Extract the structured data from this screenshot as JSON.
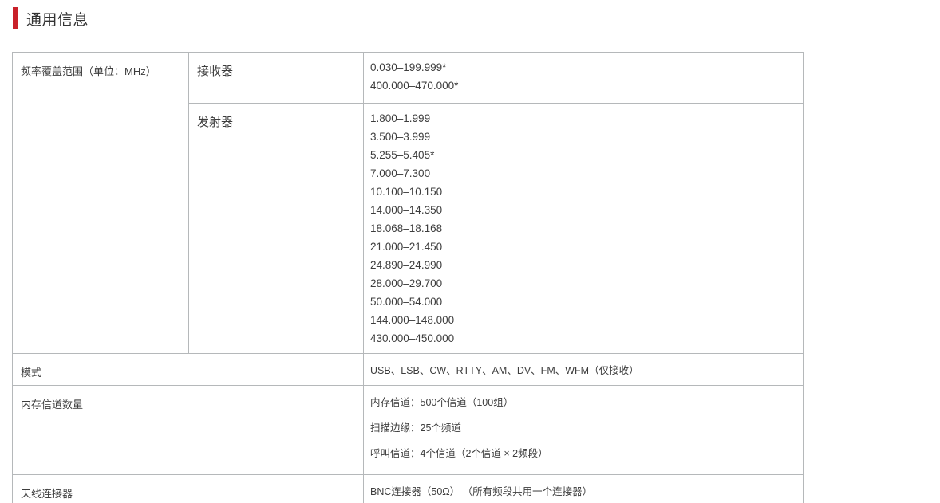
{
  "page": {
    "title": "通用信息",
    "accent_color": "#c9212a"
  },
  "spec_table": {
    "frequency_coverage": {
      "label": "频率覆盖范围（单位：MHz）",
      "receiver": {
        "label": "接收器",
        "values": [
          "0.030–199.999*",
          "400.000–470.000*"
        ]
      },
      "transmitter": {
        "label": "发射器",
        "values": [
          "1.800–1.999",
          "3.500–3.999",
          "5.255–5.405*",
          "7.000–7.300",
          "10.100–10.150",
          "14.000–14.350",
          "18.068–18.168",
          "21.000–21.450",
          "24.890–24.990",
          "28.000–29.700",
          "50.000–54.000",
          "144.000–148.000",
          "430.000–450.000"
        ]
      }
    },
    "mode": {
      "label": "模式",
      "value": "USB、LSB、CW、RTTY、AM、DV、FM、WFM（仅接收）"
    },
    "memory_channels": {
      "label": "内存信道数量",
      "values": [
        "内存信道：500个信道（100组）",
        "扫描边缘：25个频道",
        "呼叫信道：4个信道（2个信道 × 2频段）"
      ]
    },
    "antenna_connector": {
      "label": "天线连接器",
      "value": "BNC连接器（50Ω） （所有频段共用一个连接器）"
    }
  }
}
